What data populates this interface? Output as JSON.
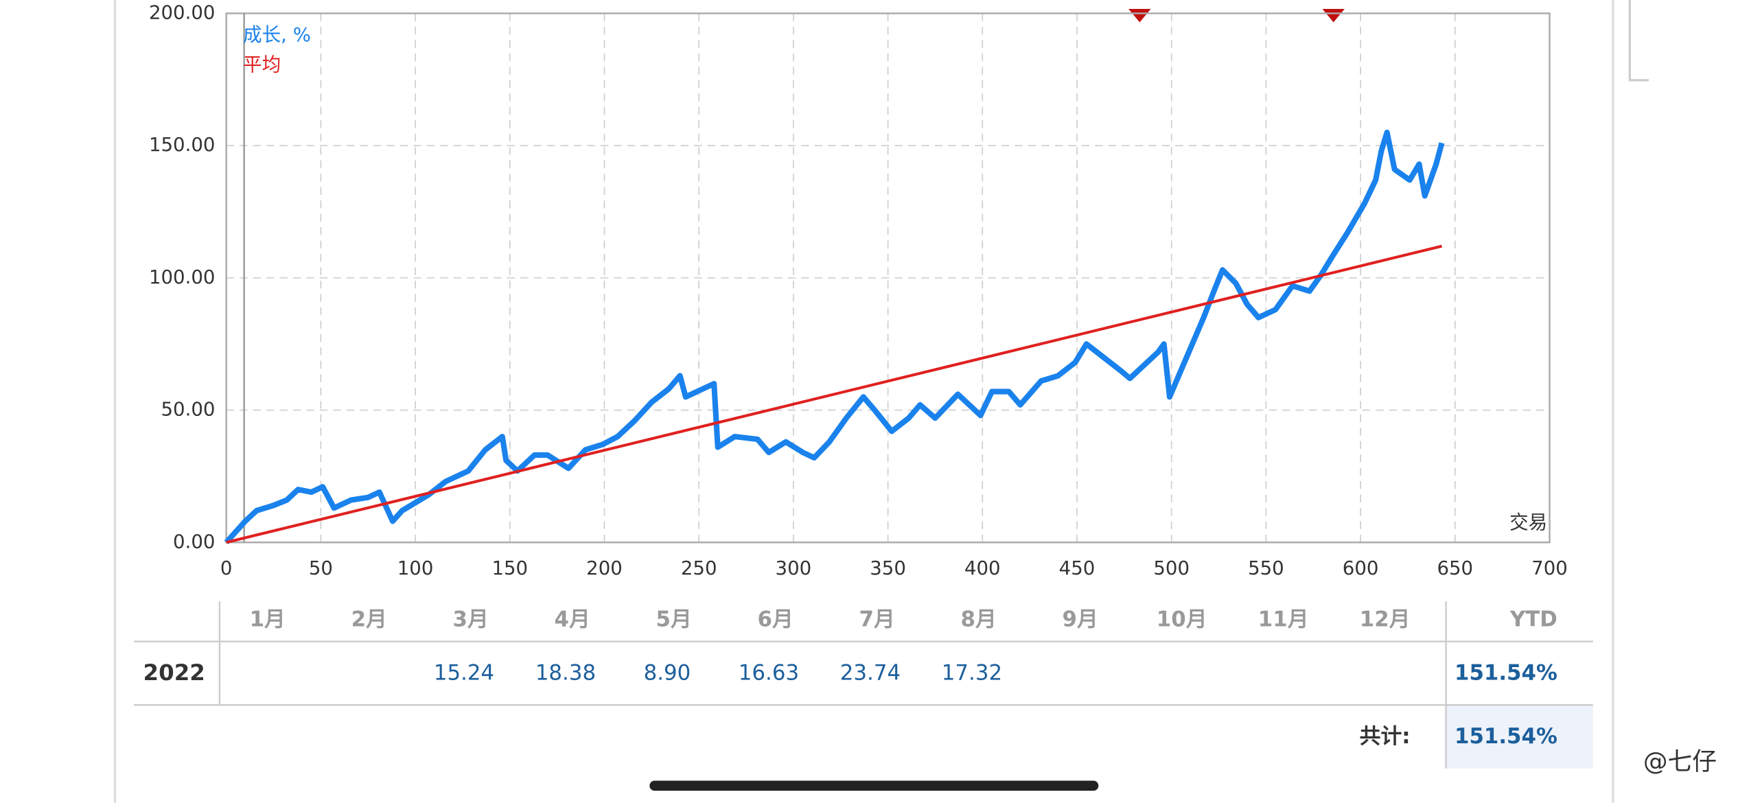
{
  "chart_data": {
    "type": "line",
    "series": [
      {
        "name": "成长, %",
        "color": "#1a82ec",
        "x": [
          0,
          10,
          16,
          25,
          32,
          38,
          45,
          51,
          57,
          66,
          75,
          81,
          88,
          93,
          100,
          107,
          116,
          128,
          137,
          146,
          148,
          154,
          163,
          170,
          181,
          190,
          199,
          207,
          216,
          225,
          234,
          240,
          243,
          252,
          258,
          260,
          269,
          281,
          287,
          296,
          305,
          311,
          319,
          328,
          337,
          343,
          352,
          361,
          367,
          375,
          387,
          399,
          405,
          414,
          420,
          431,
          440,
          449,
          455,
          464,
          473,
          478,
          487,
          493,
          496,
          499,
          505,
          517,
          523,
          527,
          534,
          540,
          546,
          555,
          564,
          573,
          576,
          579,
          585,
          593,
          602,
          608,
          611,
          614,
          618,
          626,
          631,
          634,
          640,
          643
        ],
        "values": [
          0,
          8,
          12,
          14,
          16,
          20,
          19,
          21,
          13,
          16,
          17,
          19,
          8,
          12,
          15,
          18,
          23,
          27,
          35,
          40,
          31,
          27,
          33,
          33,
          28,
          35,
          37,
          40,
          46,
          53,
          58,
          63,
          55,
          58,
          60,
          36,
          40,
          39,
          34,
          38,
          34,
          32,
          38,
          47,
          55,
          50,
          42,
          47,
          52,
          47,
          56,
          48,
          57,
          57,
          52,
          61,
          63,
          68,
          75,
          70,
          65,
          62,
          68,
          72,
          75,
          55,
          65,
          85,
          96,
          103,
          98,
          90,
          85,
          88,
          97,
          95,
          98,
          101,
          108,
          117,
          128,
          137,
          148,
          155,
          141,
          137,
          143,
          131,
          143,
          151
        ]
      },
      {
        "name": "平均",
        "color": "#e02020",
        "x": [
          0,
          643
        ],
        "values": [
          0,
          112
        ]
      }
    ],
    "x_label": "交易",
    "xlim": [
      0,
      700
    ],
    "xticks": [
      0,
      50,
      100,
      150,
      200,
      250,
      300,
      350,
      400,
      450,
      500,
      550,
      600,
      650,
      700
    ],
    "ylim": [
      0,
      200
    ],
    "yticks": [
      {
        "value": 0,
        "label": "0.00"
      },
      {
        "value": 50,
        "label": "50.00"
      },
      {
        "value": 100,
        "label": "100.00"
      },
      {
        "value": 150,
        "label": "150.00"
      },
      {
        "value": 200,
        "label": "200.00"
      }
    ],
    "grid": true
  },
  "table": {
    "months": [
      "1月",
      "2月",
      "3月",
      "4月",
      "5月",
      "6月",
      "7月",
      "8月",
      "9月",
      "10月",
      "11月",
      "12月"
    ],
    "ytd_header": "YTD",
    "row": {
      "year": "2022",
      "cells": [
        null,
        null,
        "15.24",
        "18.38",
        "8.90",
        "16.63",
        "23.74",
        "17.32",
        null,
        null,
        null,
        null
      ],
      "ytd": "151.54%"
    },
    "total_label": "共计:",
    "total": "151.54%"
  },
  "watermark": "@七仔"
}
